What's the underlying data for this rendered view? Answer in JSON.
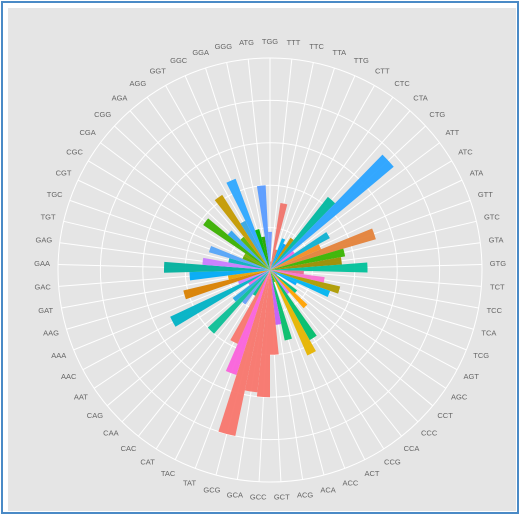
{
  "chart_data": {
    "type": "bar",
    "coord": "polar",
    "grid": true,
    "legend": "none",
    "categories": [
      "TGG",
      "TTT",
      "TTC",
      "TTA",
      "TTG",
      "CTT",
      "CTC",
      "CTA",
      "CTG",
      "ATT",
      "ATC",
      "ATA",
      "GTT",
      "GTC",
      "GTA",
      "GTG",
      "TCT",
      "TCC",
      "TCA",
      "TCG",
      "AGT",
      "AGC",
      "CCT",
      "CCC",
      "CCA",
      "CCG",
      "ACT",
      "ACC",
      "ACA",
      "ACG",
      "GCT",
      "GCC",
      "GCA",
      "GCG",
      "TAT",
      "TAC",
      "CAT",
      "CAC",
      "CAA",
      "CAG",
      "AAT",
      "AAC",
      "AAA",
      "AAG",
      "GAT",
      "GAC",
      "GAA",
      "GAG",
      "TGT",
      "TGC",
      "CGT",
      "CGC",
      "CGA",
      "CGG",
      "AGA",
      "AGG",
      "GGT",
      "GGC",
      "GGA",
      "GGG",
      "ATG"
    ],
    "values": [
      0.09,
      0.02,
      0.16,
      0.05,
      0.08,
      0.07,
      0.09,
      0.22,
      0.38,
      0.07,
      0.16,
      0.13,
      0.26,
      0.18,
      0.17,
      0.23,
      0.08,
      0.13,
      0.17,
      0.15,
      0.07,
      0.02,
      0.08,
      0.12,
      0.07,
      0.19,
      0.22,
      0.03,
      0.17,
      0.13,
      0.2,
      0.3,
      0.29,
      0.4,
      0.26,
      0.19,
      0.07,
      0.1,
      0.2,
      0.11,
      0.06,
      0.26,
      0.08,
      0.21,
      0.1,
      0.19,
      0.25,
      0.16,
      0.1,
      0.15,
      0.07,
      0.07,
      0.19,
      0.13,
      0.1,
      0.21,
      0.13,
      0.23,
      0.1,
      0.08,
      0.2
    ],
    "colors": [
      "#6e9cff",
      "#ee7440",
      "#f0746b",
      "#e8774f",
      "#00b2f0",
      "#00a0ff",
      "#c49100",
      "#00b79f",
      "#29a3ff",
      "#f265e0",
      "#0fb1d1",
      "#f48c24",
      "#e4823a",
      "#39b400",
      "#9a8d00",
      "#00c19a",
      "#e66c8f",
      "#f971d3",
      "#ae9b00",
      "#00b4ef",
      "#00a8ff",
      "#fb72b3",
      "#00bf7d",
      "#ffa100",
      "#c67bff",
      "#00be6b",
      "#e6b400",
      "#37b600",
      "#05be6a",
      "#c35ef7",
      "#f8766d",
      "#f8766d",
      "#f8766d",
      "#f8766d",
      "#fa62db",
      "#f8766d",
      "#00c08b",
      "#6a9ff5",
      "#0cbf96",
      "#28a7e3",
      "#f265d6",
      "#00b2c5",
      "#c77cff",
      "#d98100",
      "#e9a200",
      "#00aaf6",
      "#00b09d",
      "#c77cff",
      "#0ab1bb",
      "#54a4f8",
      "#60a900",
      "#7aaa00",
      "#3ab000",
      "#36a4f0",
      "#58b500",
      "#c49a00",
      "#38a7e0",
      "#2ea8ff",
      "#00b200",
      "#24a400",
      "#599bff"
    ],
    "ylim": [
      0,
      0.5
    ]
  }
}
